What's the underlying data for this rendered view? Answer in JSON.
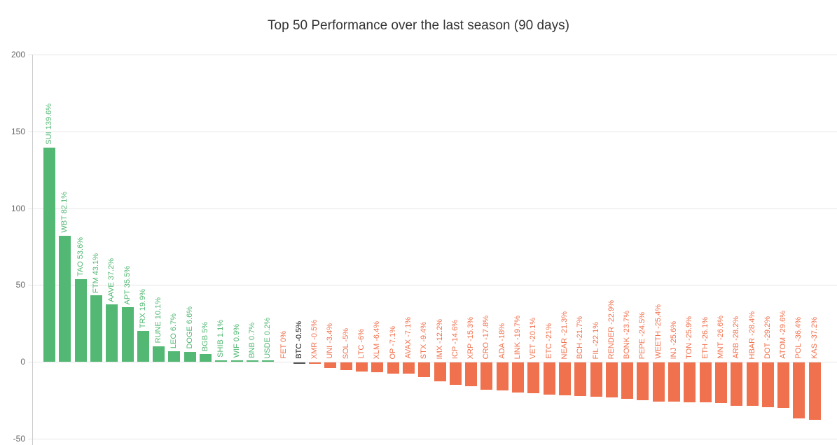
{
  "page": {
    "title": "Top 50 Performance over the last season (90 days)"
  },
  "chart_data": {
    "type": "bar",
    "title": "Top 50 Performance over the last season (90 days)",
    "xlabel": "",
    "ylabel": "",
    "unit": "%",
    "ylim": [
      -50,
      200
    ],
    "yticks": [
      200,
      150,
      100,
      50,
      0,
      -50
    ],
    "grid": true,
    "legend": false,
    "colors": {
      "positive": "#52b873",
      "negative": "#f0714e",
      "btc_bar": "#555555",
      "btc_label": "#111111",
      "gridline": "#e6e6e6",
      "axis": "#cccccc",
      "tick_label": "#666666",
      "title": "#333333"
    },
    "items": [
      {
        "symbol": "SUI",
        "label": "SUI 139.6%",
        "value": 139.6,
        "group": "positive"
      },
      {
        "symbol": "WBT",
        "label": "WBT 82.1%",
        "value": 82.1,
        "group": "positive"
      },
      {
        "symbol": "TAO",
        "label": "TAO 53.6%",
        "value": 53.6,
        "group": "positive"
      },
      {
        "symbol": "FTM",
        "label": "FTM 43.1%",
        "value": 43.1,
        "group": "positive"
      },
      {
        "symbol": "AAVE",
        "label": "AAVE 37.2%",
        "value": 37.2,
        "group": "positive"
      },
      {
        "symbol": "APT",
        "label": "APT 35.5%",
        "value": 35.5,
        "group": "positive"
      },
      {
        "symbol": "TRX",
        "label": "TRX 19.9%",
        "value": 19.9,
        "group": "positive"
      },
      {
        "symbol": "RUNE",
        "label": "RUNE 10.1%",
        "value": 10.1,
        "group": "positive"
      },
      {
        "symbol": "LEO",
        "label": "LEO 6.7%",
        "value": 6.7,
        "group": "positive"
      },
      {
        "symbol": "DOGE",
        "label": "DOGE 6.6%",
        "value": 6.6,
        "group": "positive"
      },
      {
        "symbol": "BGB",
        "label": "BGB 5%",
        "value": 5,
        "group": "positive"
      },
      {
        "symbol": "SHIB",
        "label": "SHIB 1.1%",
        "value": 1.1,
        "group": "positive"
      },
      {
        "symbol": "WIF",
        "label": "WIF 0.9%",
        "value": 0.9,
        "group": "positive"
      },
      {
        "symbol": "BNB",
        "label": "BNB 0.7%",
        "value": 0.7,
        "group": "positive"
      },
      {
        "symbol": "USDE",
        "label": "USDE 0.2%",
        "value": 0.2,
        "group": "positive"
      },
      {
        "symbol": "FET",
        "label": "FET 0%",
        "value": 0,
        "group": "negative"
      },
      {
        "symbol": "BTC",
        "label": "BTC -0.5%",
        "value": -0.5,
        "group": "btc"
      },
      {
        "symbol": "XMR",
        "label": "XMR -0.5%",
        "value": -0.5,
        "group": "negative"
      },
      {
        "symbol": "UNI",
        "label": "UNI -3.4%",
        "value": -3.4,
        "group": "negative"
      },
      {
        "symbol": "SOL",
        "label": "SOL -5%",
        "value": -5,
        "group": "negative"
      },
      {
        "symbol": "LTC",
        "label": "LTC -6%",
        "value": -6,
        "group": "negative"
      },
      {
        "symbol": "XLM",
        "label": "XLM -6.4%",
        "value": -6.4,
        "group": "negative"
      },
      {
        "symbol": "OP",
        "label": "OP -7.1%",
        "value": -7.1,
        "group": "negative"
      },
      {
        "symbol": "AVAX",
        "label": "AVAX -7.1%",
        "value": -7.1,
        "group": "negative"
      },
      {
        "symbol": "STX",
        "label": "STX -9.4%",
        "value": -9.4,
        "group": "negative"
      },
      {
        "symbol": "IMX",
        "label": "IMX -12.2%",
        "value": -12.2,
        "group": "negative"
      },
      {
        "symbol": "ICP",
        "label": "ICP -14.6%",
        "value": -14.6,
        "group": "negative"
      },
      {
        "symbol": "XRP",
        "label": "XRP -15.3%",
        "value": -15.3,
        "group": "negative"
      },
      {
        "symbol": "CRO",
        "label": "CRO -17.8%",
        "value": -17.8,
        "group": "negative"
      },
      {
        "symbol": "ADA",
        "label": "ADA -18%",
        "value": -18,
        "group": "negative"
      },
      {
        "symbol": "LINK",
        "label": "LINK -19.7%",
        "value": -19.7,
        "group": "negative"
      },
      {
        "symbol": "VET",
        "label": "VET -20.1%",
        "value": -20.1,
        "group": "negative"
      },
      {
        "symbol": "ETC",
        "label": "ETC -21%",
        "value": -21,
        "group": "negative"
      },
      {
        "symbol": "NEAR",
        "label": "NEAR -21.3%",
        "value": -21.3,
        "group": "negative"
      },
      {
        "symbol": "BCH",
        "label": "BCH -21.7%",
        "value": -21.7,
        "group": "negative"
      },
      {
        "symbol": "FIL",
        "label": "FIL -22.1%",
        "value": -22.1,
        "group": "negative"
      },
      {
        "symbol": "RENDER",
        "label": "RENDER -22.9%",
        "value": -22.9,
        "group": "negative"
      },
      {
        "symbol": "BONK",
        "label": "BONK -23.7%",
        "value": -23.7,
        "group": "negative"
      },
      {
        "symbol": "PEPE",
        "label": "PEPE -24.5%",
        "value": -24.5,
        "group": "negative"
      },
      {
        "symbol": "WEETH",
        "label": "WEETH -25.4%",
        "value": -25.4,
        "group": "negative"
      },
      {
        "symbol": "INJ",
        "label": "INJ -25.6%",
        "value": -25.6,
        "group": "negative"
      },
      {
        "symbol": "TON",
        "label": "TON -25.9%",
        "value": -25.9,
        "group": "negative"
      },
      {
        "symbol": "ETH",
        "label": "ETH -26.1%",
        "value": -26.1,
        "group": "negative"
      },
      {
        "symbol": "MNT",
        "label": "MNT -26.6%",
        "value": -26.6,
        "group": "negative"
      },
      {
        "symbol": "ARB",
        "label": "ARB -28.2%",
        "value": -28.2,
        "group": "negative"
      },
      {
        "symbol": "HBAR",
        "label": "HBAR -28.4%",
        "value": -28.4,
        "group": "negative"
      },
      {
        "symbol": "DOT",
        "label": "DOT -29.2%",
        "value": -29.2,
        "group": "negative"
      },
      {
        "symbol": "ATOM",
        "label": "ATOM -29.6%",
        "value": -29.6,
        "group": "negative"
      },
      {
        "symbol": "POL",
        "label": "POL -36.4%",
        "value": -36.4,
        "group": "negative"
      },
      {
        "symbol": "KAS",
        "label": "KAS -37.2%",
        "value": -37.2,
        "group": "negative"
      }
    ]
  }
}
